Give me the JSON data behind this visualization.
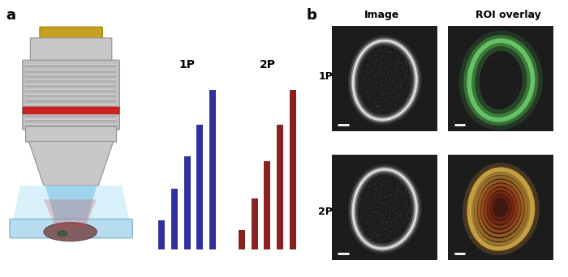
{
  "panel_a_label": "a",
  "panel_b_label": "b",
  "bar_label_1p": "1P",
  "bar_label_2p": "2P",
  "bars_1p": [
    0.18,
    0.38,
    0.58,
    0.78,
    1.0
  ],
  "bars_2p": [
    0.12,
    0.32,
    0.55,
    0.78,
    1.0
  ],
  "bar_color_1p": "#3030A0",
  "bar_color_2p": "#8B2020",
  "image_col1_label": "Image",
  "image_col2_label": "ROI overlay",
  "row1_label": "1P",
  "row2_label": "2P",
  "background": "#ffffff",
  "lens_gold": "#c8a020",
  "lens_gray": "#c0c0c0",
  "lens_dark_gray": "#a0a0a0",
  "lens_red": "#cc2222",
  "lens_blue": "#a8d8f0",
  "cell_color": "#6a4040"
}
